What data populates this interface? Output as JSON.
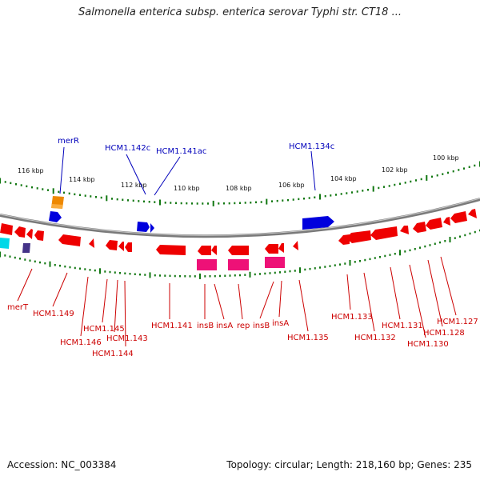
{
  "title": "Salmonella enterica subsp. enterica serovar Typhi str. CT18 ...",
  "footer": {
    "accession": "Accession: NC_003384",
    "summary": "Topology: circular; Length: 218,160 bp; Genes: 235"
  },
  "colors": {
    "forward_gene": "#0000dd",
    "reverse_gene": "#ee0000",
    "mobile_element": "#ee1177",
    "other_gene": "#ee8800",
    "misc_gene": "#00d8e8",
    "purple_gene": "#443388",
    "backbone": "#888888",
    "tick": "#117711",
    "label_blue": "#0000bb",
    "label_red": "#cc0000"
  },
  "scale_labels": [
    "116 kbp",
    "114 kbp",
    "112 kbp",
    "110 kbp",
    "108 kbp",
    "106 kbp",
    "104 kbp",
    "102 kbp",
    "100 kbp"
  ],
  "top_labels": [
    "merR",
    "HCM1.142c",
    "HCM1.141ac",
    "HCM1.134c"
  ],
  "bottom_labels": [
    "merT",
    "HCM1.149",
    "HCM1.146",
    "HCM1.145",
    "HCM1.143",
    "HCM1.144",
    "HCM1.141",
    "insB",
    "insA",
    "rep",
    "insB",
    "insA",
    "HCM1.135",
    "HCM1.133",
    "HCM1.132",
    "HCM1.131",
    "HCM1.130",
    "HCM1.128",
    "HCM1.127"
  ]
}
